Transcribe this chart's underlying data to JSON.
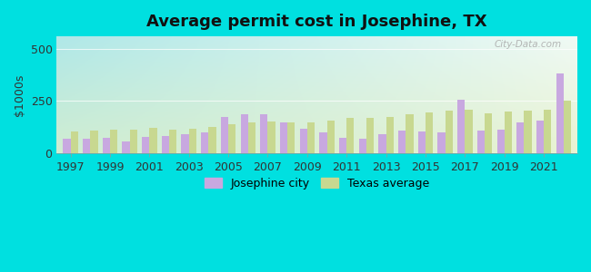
{
  "title": "Average permit cost in Josephine, TX",
  "ylabel": "$1000s",
  "ylim": [
    0,
    560
  ],
  "yticks": [
    0,
    250,
    500
  ],
  "background_outer": "#00e0e0",
  "josephine_color": "#c8a8e0",
  "texas_color": "#c8d890",
  "bar_width": 0.38,
  "years": [
    1997,
    1998,
    1999,
    2000,
    2001,
    2002,
    2003,
    2004,
    2005,
    2006,
    2007,
    2008,
    2009,
    2010,
    2011,
    2012,
    2013,
    2014,
    2015,
    2016,
    2017,
    2018,
    2019,
    2020,
    2021,
    2022
  ],
  "josephine": [
    68,
    68,
    75,
    55,
    78,
    82,
    92,
    100,
    175,
    185,
    185,
    148,
    115,
    98,
    72,
    70,
    90,
    110,
    105,
    100,
    255,
    108,
    112,
    148,
    158,
    380
  ],
  "texas": [
    105,
    108,
    112,
    112,
    120,
    112,
    118,
    125,
    138,
    148,
    152,
    148,
    148,
    158,
    168,
    168,
    172,
    185,
    195,
    202,
    208,
    192,
    198,
    202,
    210,
    252
  ],
  "legend_josephine": "Josephine city",
  "legend_texas": "Texas average",
  "watermark": "City-Data.com",
  "grad_top_left": "#b0e8e8",
  "grad_bottom_right": "#e8f0d0",
  "plot_bg_top": "#c8ece8",
  "plot_bg_bottom": "#e8f2d8"
}
